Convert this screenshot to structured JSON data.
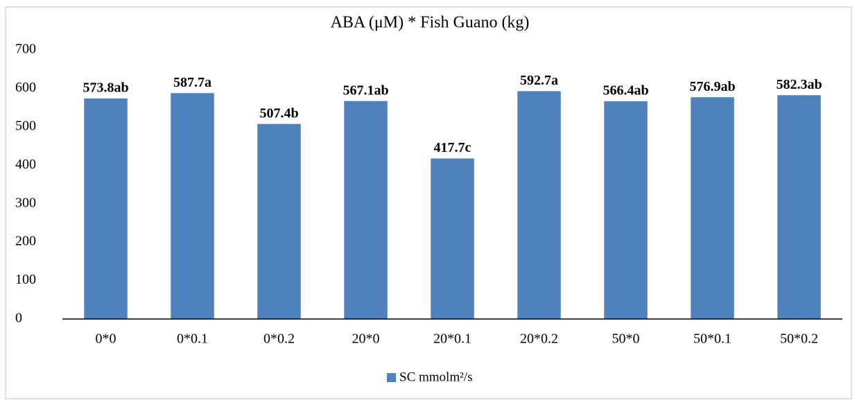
{
  "chart_data": {
    "type": "bar",
    "title": "ABA (μM) * Fish Guano (kg)",
    "categories": [
      "0*0",
      "0*0.1",
      "0*0.2",
      "20*0",
      "20*0.1",
      "20*0.2",
      "50*0",
      "50*0.1",
      "50*0.2"
    ],
    "series": [
      {
        "name": "SC mmolm²/s",
        "color": "#4f81bd",
        "values": [
          573.8,
          587.7,
          507.4,
          567.1,
          417.7,
          592.7,
          566.4,
          576.9,
          582.3
        ],
        "value_labels": [
          "573.8ab",
          "587.7a",
          "507.4b",
          "567.1ab",
          "417.7c",
          "592.7a",
          "566.4ab",
          "576.9ab",
          "582.3ab"
        ]
      }
    ],
    "ylim": [
      0,
      700
    ],
    "yticks": [
      0,
      100,
      200,
      300,
      400,
      500,
      600,
      700
    ],
    "grid": false,
    "legend": "bottom"
  }
}
